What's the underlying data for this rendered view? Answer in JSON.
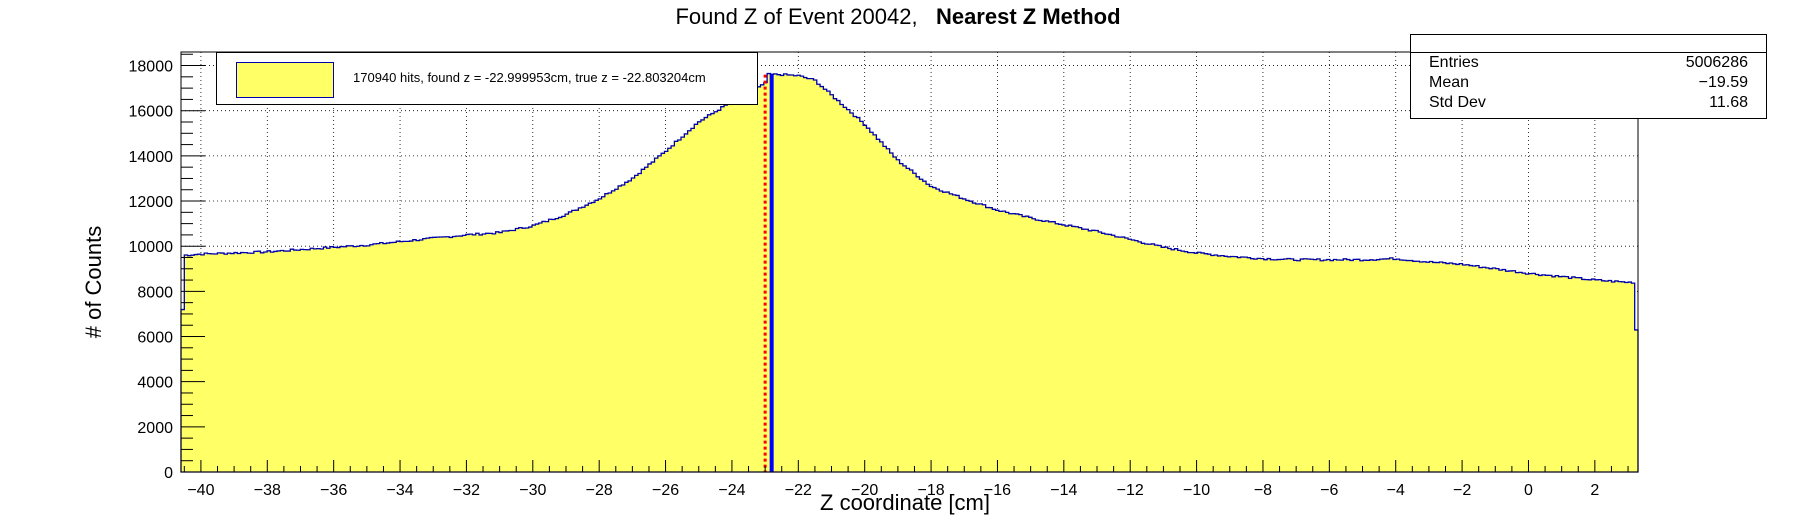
{
  "title": {
    "main": "Found Z of Event 20042,",
    "method": "Nearest Z Method"
  },
  "stats_box": {
    "entries_label": "Entries",
    "entries_value": "5006286",
    "mean_label": "Mean",
    "mean_value": "−19.59",
    "stddev_label": "Std Dev",
    "stddev_value": "11.68"
  },
  "legend": {
    "label": "170940 hits, found z = -22.999953cm, true z = -22.803204cm"
  },
  "colors": {
    "fill": "#ffff66",
    "outline": "#0000aa",
    "true_z_line": "#0000ff",
    "found_z_line": "#ff0000"
  },
  "chart_data": {
    "type": "area",
    "title": "Found Z of Event 20042, Nearest Z Method",
    "xlabel": "Z coordinate [cm]",
    "ylabel": "# of Counts",
    "xlim": [
      -40.6,
      3.3
    ],
    "ylim": [
      0,
      18600
    ],
    "x_ticks": [
      -40,
      -38,
      -36,
      -34,
      -32,
      -30,
      -28,
      -26,
      -24,
      -22,
      -20,
      -18,
      -16,
      -14,
      -12,
      -10,
      -8,
      -6,
      -4,
      -2,
      0,
      2
    ],
    "y_ticks": [
      0,
      2000,
      4000,
      6000,
      8000,
      10000,
      12000,
      14000,
      16000,
      18000
    ],
    "grid": true,
    "x": [
      -40.6,
      -40.5,
      -40,
      -39,
      -38,
      -37,
      -36,
      -35,
      -34,
      -33,
      -32,
      -31,
      -30,
      -29,
      -28,
      -27,
      -26,
      -25,
      -24,
      -23.5,
      -23.1,
      -23.0,
      -22.9,
      -22.5,
      -22,
      -21.5,
      -21,
      -20,
      -19,
      -18,
      -17,
      -16,
      -15,
      -14,
      -13,
      -12,
      -11,
      -10,
      -9,
      -8,
      -7,
      -6,
      -5,
      -4,
      -3,
      -2,
      -1,
      0,
      1,
      2,
      3,
      3.2,
      3.3
    ],
    "counts": [
      4800,
      9600,
      9650,
      9700,
      9750,
      9850,
      9950,
      10050,
      10200,
      10350,
      10500,
      10600,
      10900,
      11400,
      12100,
      13000,
      14200,
      15500,
      16400,
      16800,
      17100,
      17200,
      17600,
      17600,
      17550,
      17350,
      16700,
      15400,
      13800,
      12650,
      12100,
      11600,
      11250,
      10950,
      10650,
      10300,
      9950,
      9700,
      9550,
      9450,
      9400,
      9400,
      9400,
      9450,
      9300,
      9200,
      9000,
      8800,
      8650,
      8500,
      8400,
      8400,
      4200
    ],
    "found_z": -22.999953,
    "true_z": -22.803204
  }
}
